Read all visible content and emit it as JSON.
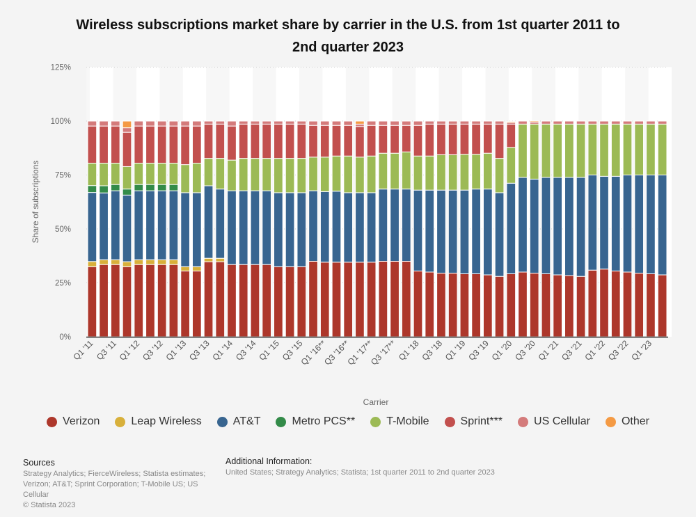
{
  "title": "Wireless subscriptions market share by carrier in the U.S. from 1st quarter 2011 to 2nd quarter 2023",
  "sources": {
    "heading": "Sources",
    "text": "Strategy Analytics; FierceWireless; Statista estimates; Verizon; AT&T; Sprint Corporation; T-Mobile US; US Cellular",
    "copyright": "© Statista 2023"
  },
  "additional_info": {
    "heading": "Additional Information:",
    "text": "United States; Strategy Analytics; Statista; 1st quarter 2011 to 2nd quarter 2023"
  },
  "chart_data": {
    "type": "bar",
    "stacked": true,
    "title": "Wireless subscriptions market share by carrier in the U.S. from 1st quarter 2011 to 2nd quarter 2023",
    "xlabel": "Carrier",
    "ylabel": "Share of subscriptions",
    "ylim": [
      0,
      125
    ],
    "yticks": [
      "0%",
      "25%",
      "50%",
      "75%",
      "100%",
      "125%"
    ],
    "ytick_values": [
      0,
      25,
      50,
      75,
      100,
      125
    ],
    "grid": true,
    "legend_position": "bottom",
    "categories": [
      "Q1 '11",
      "Q2 '11",
      "Q3 '11",
      "Q4 '11",
      "Q1 '12",
      "Q2 '12",
      "Q3 '12",
      "Q4 '12",
      "Q1 '13",
      "Q2 '13",
      "Q3 '13",
      "Q4 '13",
      "Q1 '14",
      "Q2 '14",
      "Q3 '14",
      "Q4 '14",
      "Q1 '15",
      "Q2 '15",
      "Q3 '15",
      "Q4 '15",
      "Q1 '16**",
      "Q2 '16**",
      "Q3 '16**",
      "Q4 '16**",
      "Q1 '17**",
      "Q2 '17**",
      "Q3 '17**",
      "Q4 '17**",
      "Q1 '18",
      "Q2 '18",
      "Q3 '18",
      "Q4 '18",
      "Q1 '19",
      "Q2 '19",
      "Q3 '19",
      "Q4 '19",
      "Q1 '20",
      "Q2 '20",
      "Q3 '20",
      "Q4 '20",
      "Q1 '21",
      "Q2 '21",
      "Q3 '21",
      "Q4 '21",
      "Q1 '22",
      "Q2 '22",
      "Q3 '22",
      "Q4 '22",
      "Q1 '23",
      "Q2 '23"
    ],
    "series": [
      {
        "name": "Verizon",
        "color": "#ad372b",
        "values": [
          32.5,
          33.5,
          33.5,
          32.5,
          33.5,
          33.5,
          33.5,
          33.5,
          30.5,
          30.5,
          34.8,
          34.8,
          33.5,
          33.5,
          33.5,
          33.5,
          32.5,
          32.5,
          32.5,
          35.0,
          34.6,
          34.6,
          34.6,
          34.6,
          34.6,
          35.0,
          35.0,
          35.0,
          30.5,
          30.0,
          29.5,
          29.5,
          29.2,
          29.2,
          28.7,
          28.0,
          29.2,
          30.0,
          29.5,
          29.2,
          28.7,
          28.4,
          28.0,
          30.9,
          31.4,
          30.5,
          30.0,
          29.5,
          29.2,
          28.7
        ]
      },
      {
        "name": "Leap Wireless",
        "color": "#d8b03b",
        "values": [
          2.4,
          2.2,
          2.2,
          2.3,
          2.2,
          2.2,
          2.2,
          2.2,
          2.0,
          2.0,
          1.6,
          1.6,
          0,
          0,
          0,
          0,
          0,
          0,
          0,
          0,
          0,
          0,
          0,
          0,
          0,
          0,
          0,
          0,
          0,
          0,
          0,
          0,
          0,
          0,
          0,
          0,
          0,
          0,
          0,
          0,
          0,
          0,
          0,
          0,
          0,
          0,
          0,
          0,
          0,
          0
        ]
      },
      {
        "name": "AT&T",
        "color": "#386590",
        "values": [
          32.0,
          31.0,
          32.0,
          30.9,
          32.0,
          32.0,
          32.0,
          32.0,
          34.3,
          34.3,
          33.6,
          32.1,
          34.2,
          34.2,
          34.2,
          34.2,
          34.3,
          34.3,
          34.3,
          32.7,
          32.7,
          32.9,
          32.2,
          32.2,
          32.2,
          33.5,
          33.5,
          33.5,
          37.5,
          38.0,
          38.5,
          38.5,
          38.8,
          39.3,
          39.8,
          38.8,
          42.0,
          43.9,
          43.6,
          44.7,
          45.2,
          45.5,
          45.9,
          44.1,
          43.0,
          43.9,
          45.0,
          45.5,
          45.8,
          46.3
        ]
      },
      {
        "name": "Metro PCS**",
        "color": "#338b49",
        "values": [
          3.2,
          3.3,
          2.9,
          2.8,
          2.9,
          2.9,
          2.9,
          2.9,
          0,
          0,
          0,
          0,
          0,
          0,
          0,
          0,
          0,
          0,
          0,
          0,
          0,
          0,
          0,
          0,
          0,
          0,
          0,
          0,
          0,
          0,
          0,
          0,
          0,
          0,
          0,
          0,
          0,
          0,
          0,
          0,
          0,
          0,
          0,
          0,
          0,
          0,
          0,
          0,
          0,
          0
        ]
      },
      {
        "name": "T-Mobile",
        "color": "#9cba55",
        "values": [
          10.4,
          10.5,
          9.9,
          10.4,
          9.9,
          9.9,
          9.9,
          9.9,
          13.0,
          13.7,
          12.7,
          14.2,
          14.2,
          15.0,
          15.0,
          15.0,
          15.9,
          15.9,
          15.9,
          15.6,
          16.0,
          16.3,
          17.0,
          16.5,
          17.0,
          16.6,
          16.6,
          17.2,
          15.8,
          15.8,
          16.4,
          16.4,
          16.6,
          16.1,
          16.6,
          15.9,
          16.6,
          24.7,
          25.5,
          24.7,
          24.7,
          24.7,
          24.7,
          23.6,
          24.2,
          24.2,
          23.6,
          23.6,
          23.6,
          23.6
        ]
      },
      {
        "name": "Sprint***",
        "color": "#c2504e",
        "values": [
          17.2,
          17.2,
          17.2,
          15.9,
          17.2,
          17.2,
          17.2,
          17.2,
          17.9,
          17.2,
          15.9,
          15.9,
          15.8,
          15.9,
          15.9,
          15.9,
          15.9,
          15.9,
          15.9,
          14.7,
          14.7,
          14.2,
          14.2,
          14.2,
          14.2,
          12.9,
          12.9,
          12.3,
          14.2,
          14.8,
          14.2,
          14.2,
          14.0,
          14.0,
          13.5,
          15.9,
          10.8,
          0,
          0,
          0,
          0,
          0,
          0,
          0,
          0,
          0,
          0,
          0,
          0,
          0
        ]
      },
      {
        "name": "US Cellular",
        "color": "#d47b7b",
        "values": [
          2.3,
          2.3,
          2.3,
          2.1,
          2.3,
          2.3,
          2.3,
          2.3,
          2.3,
          2.3,
          1.4,
          1.4,
          2.3,
          1.4,
          1.4,
          1.4,
          1.4,
          1.4,
          1.4,
          2.0,
          2.0,
          2.0,
          2.0,
          1.1,
          2.0,
          2.0,
          2.0,
          2.0,
          2.0,
          1.4,
          1.4,
          1.4,
          1.4,
          1.4,
          1.4,
          1.4,
          0.7,
          1.4,
          0.9,
          1.4,
          1.4,
          1.4,
          1.4,
          1.4,
          1.4,
          1.4,
          1.4,
          1.4,
          1.4,
          1.4
        ]
      },
      {
        "name": "Other",
        "color": "#f49a44",
        "values": [
          0,
          0,
          0,
          3.1,
          0,
          0,
          0,
          0,
          0,
          0,
          0,
          0,
          0,
          0,
          0,
          0,
          0,
          0,
          0,
          0,
          0,
          0,
          0,
          1.4,
          0,
          0,
          0,
          0,
          0,
          0,
          0,
          0,
          0,
          0,
          0,
          0,
          0.5,
          0,
          0.5,
          0,
          0,
          0,
          0,
          0,
          0,
          0,
          0,
          0,
          0,
          0
        ]
      }
    ]
  }
}
